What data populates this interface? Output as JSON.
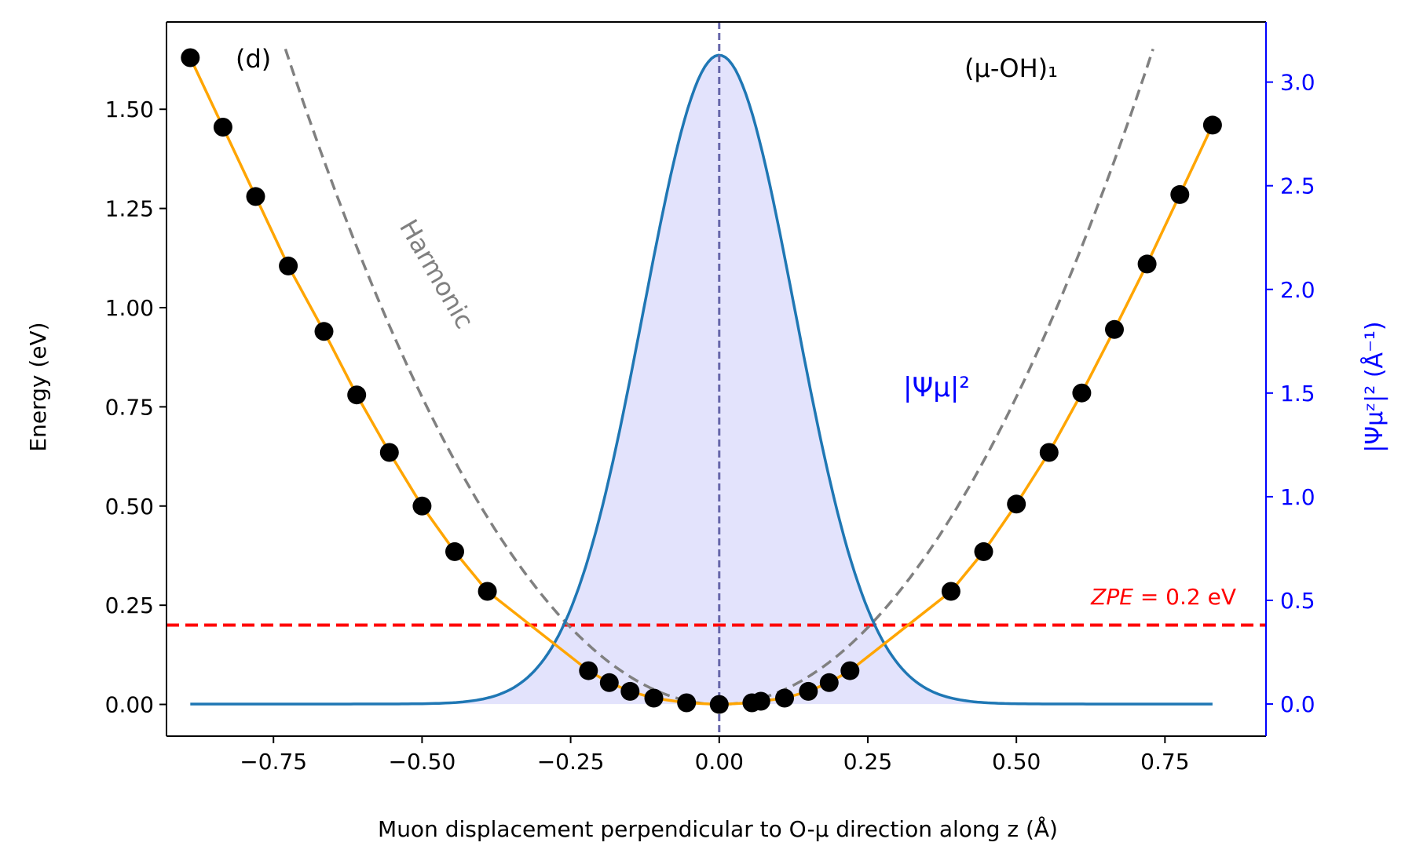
{
  "chart_data": {
    "type": "line",
    "panel_label": "(d)",
    "system_label": "(μ-OH)₁",
    "xlabel": "Muon displacement perpendicular to O-μ direction along z (Å)",
    "ylabel_left": "Energy (eV)",
    "ylabel_right": "|Ψμᶻ|² (Å⁻¹)",
    "xlim": [
      -0.93,
      0.92
    ],
    "ylim_left": [
      -0.08,
      1.72
    ],
    "ylim_right": [
      -0.155,
      3.29
    ],
    "x_ticks": [
      -0.75,
      -0.5,
      -0.25,
      0.0,
      0.25,
      0.5,
      0.75
    ],
    "x_tick_labels": [
      "−0.75",
      "−0.50",
      "−0.25",
      "0.00",
      "0.25",
      "0.50",
      "0.75"
    ],
    "yleft_ticks": [
      0.0,
      0.25,
      0.5,
      0.75,
      1.0,
      1.25,
      1.5
    ],
    "yleft_tick_labels": [
      "0.00",
      "0.25",
      "0.50",
      "0.75",
      "1.00",
      "1.25",
      "1.50"
    ],
    "yright_ticks": [
      0.0,
      0.5,
      1.0,
      1.5,
      2.0,
      2.5,
      3.0
    ],
    "yright_tick_labels": [
      "0.0",
      "0.5",
      "1.0",
      "1.5",
      "2.0",
      "2.5",
      "3.0"
    ],
    "grid": false,
    "series": [
      {
        "role": "dft_points",
        "axis": "left",
        "x": [
          -0.89,
          -0.835,
          -0.78,
          -0.725,
          -0.665,
          -0.61,
          -0.555,
          -0.5,
          -0.445,
          -0.39,
          -0.22,
          -0.185,
          -0.15,
          -0.11,
          -0.055,
          0.0,
          0.055,
          0.07,
          0.11,
          0.15,
          0.185,
          0.22,
          0.39,
          0.445,
          0.5,
          0.555,
          0.61,
          0.665,
          0.72,
          0.775,
          0.83
        ],
        "y": [
          1.63,
          1.455,
          1.28,
          1.105,
          0.94,
          0.78,
          0.635,
          0.5,
          0.385,
          0.285,
          0.085,
          0.055,
          0.033,
          0.016,
          0.004,
          0.0,
          0.004,
          0.008,
          0.016,
          0.033,
          0.055,
          0.085,
          0.285,
          0.385,
          0.505,
          0.635,
          0.785,
          0.945,
          1.11,
          1.285,
          1.46
        ],
        "color": "#000000"
      },
      {
        "role": "fit_curve",
        "axis": "left",
        "x": [
          -0.89,
          -0.835,
          -0.78,
          -0.725,
          -0.665,
          -0.61,
          -0.555,
          -0.5,
          -0.445,
          -0.39,
          -0.22,
          -0.185,
          -0.15,
          -0.11,
          -0.055,
          0.0,
          0.055,
          0.07,
          0.11,
          0.15,
          0.185,
          0.22,
          0.39,
          0.445,
          0.5,
          0.555,
          0.61,
          0.665,
          0.72,
          0.775,
          0.83
        ],
        "y": [
          1.63,
          1.455,
          1.28,
          1.105,
          0.94,
          0.78,
          0.635,
          0.5,
          0.385,
          0.285,
          0.085,
          0.055,
          0.033,
          0.016,
          0.004,
          0.0,
          0.004,
          0.008,
          0.016,
          0.033,
          0.055,
          0.085,
          0.285,
          0.385,
          0.505,
          0.635,
          0.785,
          0.945,
          1.11,
          1.285,
          1.46
        ],
        "color": "#ffa500"
      },
      {
        "role": "harmonic",
        "axis": "left",
        "label": "Harmonic",
        "coefficient": 3.1,
        "x_range": [
          -0.73,
          0.73
        ],
        "color": "#808080"
      },
      {
        "role": "wavefunction",
        "axis": "right",
        "label": "|Ψμ|²",
        "peak": 3.13,
        "sigma": 0.1275,
        "x_range": [
          -0.89,
          0.83
        ],
        "line_color": "#1f77b4",
        "fill_color": "#e3e3fc"
      }
    ],
    "zpe": {
      "value": 0.2,
      "label_prefix": "ZPE",
      "label_suffix": " = 0.2 eV",
      "color": "#ff0000"
    },
    "center_line_x": 0.0,
    "right_axis_color": "#0000ff"
  }
}
